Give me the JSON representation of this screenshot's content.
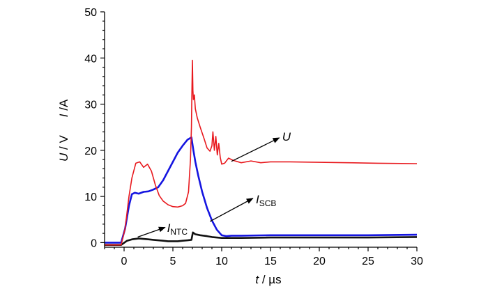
{
  "chart_data": {
    "type": "line",
    "xlabel": {
      "var": "t",
      "unit": " / µs"
    },
    "ylabel": {
      "left_var": "U",
      "left_unit": " / V",
      "right_var": "I",
      "right_unit": " /A"
    },
    "xlim": [
      -2,
      30
    ],
    "ylim": [
      -1,
      50
    ],
    "xticks": [
      0,
      5,
      10,
      15,
      20,
      25,
      30
    ],
    "yticks": [
      0,
      10,
      20,
      30,
      40,
      50
    ],
    "grid": false,
    "series": [
      {
        "name": "U",
        "color": "#e8191e",
        "x": [
          -2,
          -0.3,
          0.1,
          0.5,
          0.8,
          1.2,
          1.6,
          2.0,
          2.4,
          2.8,
          3.2,
          3.6,
          4.0,
          4.5,
          5.0,
          5.5,
          6.0,
          6.3,
          6.6,
          6.8,
          6.9,
          6.95,
          7.0,
          7.05,
          7.1,
          7.2,
          7.3,
          7.5,
          7.8,
          8.2,
          8.5,
          8.8,
          9.0,
          9.1,
          9.25,
          9.4,
          9.55,
          9.7,
          9.85,
          10.0,
          10.3,
          10.7,
          11.2,
          12.0,
          13.0,
          14.0,
          15.0,
          17.0,
          20.0,
          23.0,
          26.0,
          30.0
        ],
        "y": [
          -0.5,
          -0.5,
          3,
          10,
          14,
          17.2,
          17.5,
          16.3,
          17,
          15.5,
          12.5,
          10.2,
          9,
          8.2,
          7.8,
          7.7,
          8,
          8.5,
          11,
          18,
          25,
          33,
          39.5,
          33,
          31,
          32,
          29,
          27,
          25,
          22.5,
          20.5,
          19.8,
          21,
          24,
          20,
          23,
          19,
          21.5,
          18.5,
          17,
          17.2,
          18.3,
          17.8,
          17.3,
          17.7,
          17.3,
          17.5,
          17.5,
          17.4,
          17.3,
          17.2,
          17.1
        ]
      },
      {
        "name": "I_SCB",
        "label": "I",
        "label_sub": "SCB",
        "color": "#1515e0",
        "x": [
          -2,
          -0.3,
          0.1,
          0.5,
          0.8,
          1.1,
          1.5,
          2.0,
          2.5,
          3.0,
          3.5,
          4.0,
          4.5,
          5.0,
          5.5,
          6.0,
          6.5,
          6.9,
          7.1,
          7.3,
          7.6,
          8.0,
          8.5,
          9.0,
          9.5,
          10.0,
          10.5,
          11.0,
          12.0,
          15.0,
          20.0,
          25.0,
          30.0
        ],
        "y": [
          0,
          0,
          3,
          8,
          10.5,
          10.8,
          10.6,
          11,
          11.1,
          11.5,
          12,
          13.5,
          15.5,
          17.5,
          19.5,
          21,
          22.3,
          22.8,
          20,
          17.5,
          14.5,
          11,
          7.5,
          4.8,
          2.8,
          1.6,
          1.4,
          1.5,
          1.5,
          1.6,
          1.6,
          1.6,
          1.7
        ]
      },
      {
        "name": "I_NTC",
        "label": "I",
        "label_sub": "NTC",
        "color": "#111111",
        "x": [
          -2,
          -0.3,
          0.3,
          0.8,
          1.5,
          2.0,
          2.5,
          3.0,
          3.5,
          4.0,
          4.5,
          5.0,
          5.5,
          6.0,
          6.5,
          6.9,
          7.05,
          7.3,
          7.8,
          8.5,
          9.0,
          10.0,
          12.0,
          15.0,
          20.0,
          25.0,
          30.0
        ],
        "y": [
          -0.5,
          -0.5,
          0.4,
          0.7,
          0.9,
          0.8,
          0.7,
          0.6,
          0.5,
          0.4,
          0.3,
          0.3,
          0.3,
          0.4,
          0.5,
          0.6,
          2.2,
          1.8,
          1.6,
          1.4,
          1.2,
          1.0,
          1.0,
          1.1,
          1.1,
          1.1,
          1.2
        ]
      }
    ],
    "annotations": [
      {
        "text": "U",
        "sub": "",
        "text_at": [
          16.2,
          23
        ],
        "arrow_from": [
          15.9,
          22.7
        ],
        "arrow_to": [
          11.0,
          17.6
        ]
      },
      {
        "text": "I",
        "sub": "SCB",
        "text_at": [
          13.5,
          9.4
        ],
        "arrow_from": [
          13.2,
          9.6
        ],
        "arrow_to": [
          8.8,
          4.6
        ]
      },
      {
        "text": "I",
        "sub": "NTC",
        "text_at": [
          4.4,
          3.2
        ],
        "arrow_from": [
          4.2,
          3.3
        ],
        "arrow_to": [
          1.4,
          1.2
        ]
      }
    ]
  }
}
